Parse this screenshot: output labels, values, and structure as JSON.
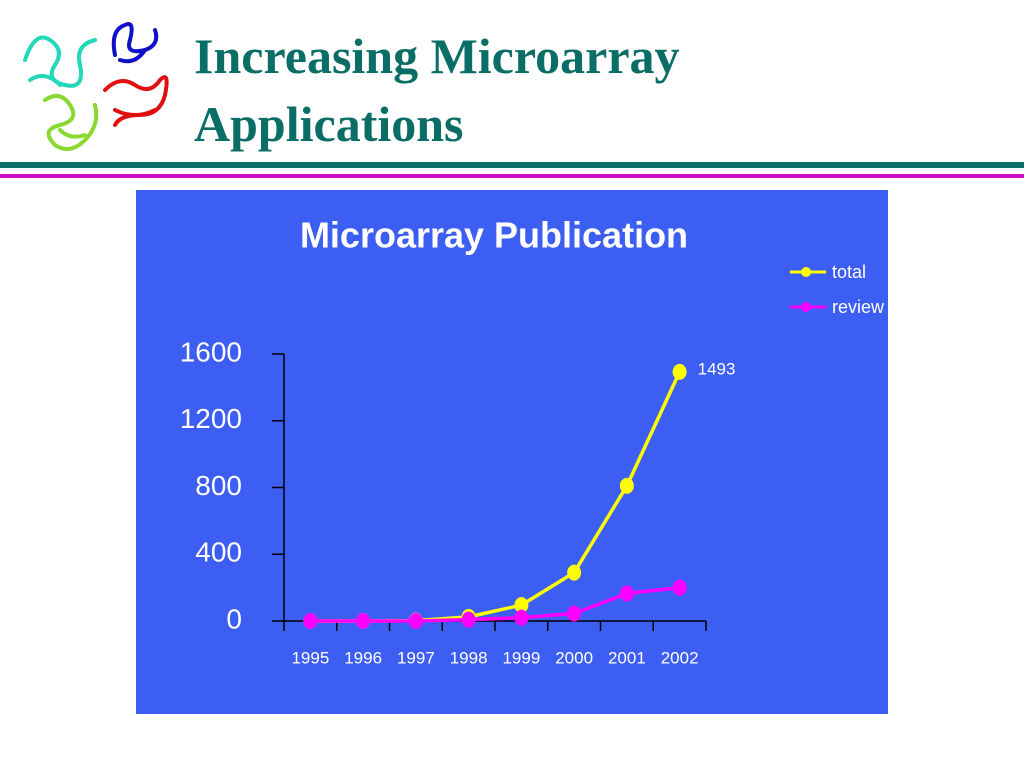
{
  "header": {
    "title": "Increasing Microarray Applications"
  },
  "chart_data": {
    "type": "line",
    "title": "Microarray Publication",
    "categories": [
      "1995",
      "1996",
      "1997",
      "1998",
      "1999",
      "2000",
      "2001",
      "2002"
    ],
    "series": [
      {
        "name": "total",
        "color": "#ffff00",
        "values": [
          0,
          0,
          2,
          25,
          95,
          290,
          810,
          1493
        ]
      },
      {
        "name": "review",
        "color": "#ff00ff",
        "values": [
          0,
          0,
          0,
          8,
          20,
          45,
          165,
          200
        ]
      }
    ],
    "ylim": [
      0,
      1600
    ],
    "yticks": [
      0,
      400,
      800,
      1200,
      1600
    ],
    "legend": "upper right",
    "background": "#3d5ef2"
  }
}
